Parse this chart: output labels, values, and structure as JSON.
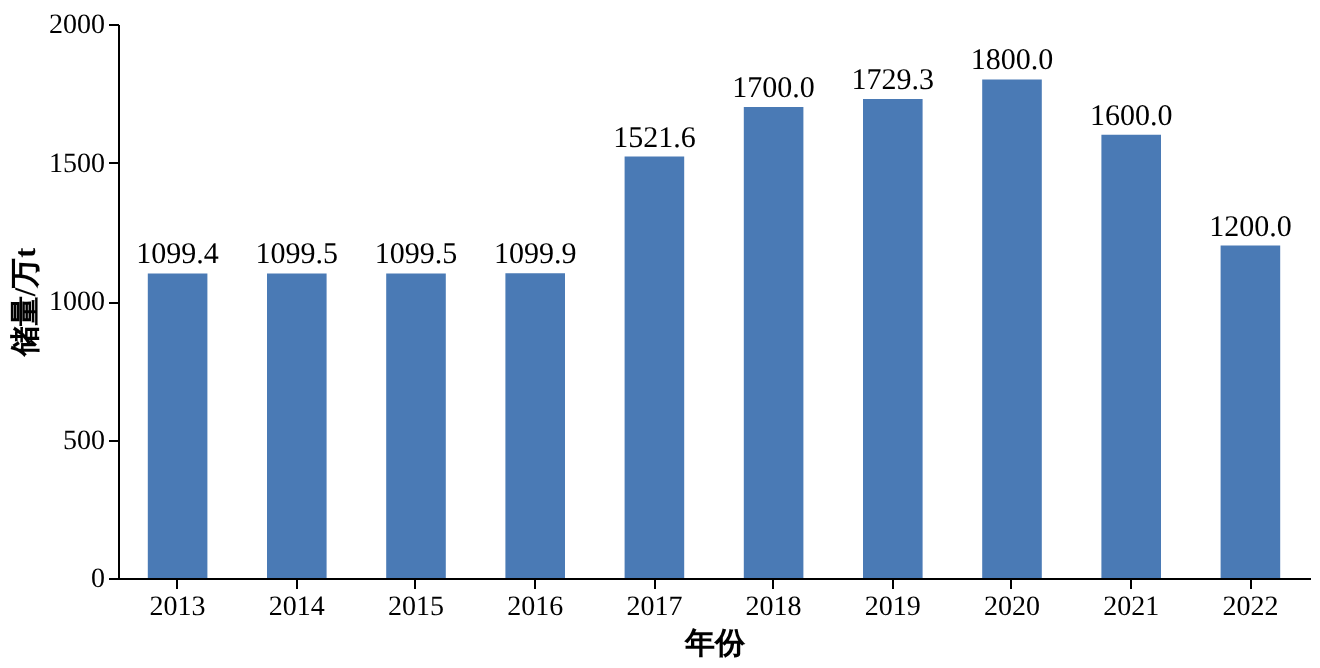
{
  "chart_data": {
    "type": "bar",
    "xlabel": "年份",
    "ylabel": "储量/万t",
    "categories": [
      "2013",
      "2014",
      "2015",
      "2016",
      "2017",
      "2018",
      "2019",
      "2020",
      "2021",
      "2022"
    ],
    "values": [
      1099.4,
      1099.5,
      1099.5,
      1099.9,
      1521.6,
      1700.0,
      1729.3,
      1800.0,
      1600.0,
      1200.0
    ],
    "value_labels": [
      "1099.4",
      "1099.5",
      "1099.5",
      "1099.9",
      "1521.6",
      "1700.0",
      "1729.3",
      "1800.0",
      "1600.0",
      "1200.0"
    ],
    "color": "#4a7ab5",
    "ylim": [
      0,
      2000
    ],
    "yticks": [
      0,
      500,
      1000,
      1500,
      2000
    ],
    "grid": false
  }
}
